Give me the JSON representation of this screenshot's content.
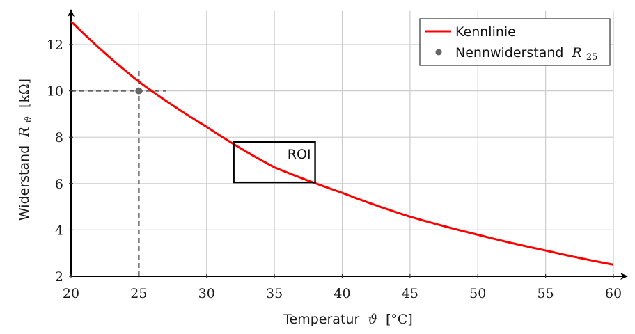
{
  "chart_data": {
    "type": "line",
    "title": "",
    "xlabel": {
      "text": "Temperatur",
      "symbol": "ϑ",
      "unit": "[°C]"
    },
    "ylabel": {
      "text": "Widerstand",
      "symbol": "R",
      "subscript": "ϑ",
      "unit": "[kΩ]"
    },
    "xlim": [
      20,
      62.5
    ],
    "ylim": [
      2,
      13.45
    ],
    "xticks": [
      20,
      25,
      30,
      35,
      40,
      45,
      50,
      55,
      60
    ],
    "yticks": [
      2,
      4,
      6,
      8,
      10,
      12
    ],
    "xtick_labels": [
      "20",
      "25",
      "30",
      "35",
      "40",
      "45",
      "50",
      "55",
      "60"
    ],
    "ytick_labels": [
      "2",
      "4",
      "6",
      "8",
      "10",
      "12"
    ],
    "grid": true,
    "legend_position": "top-right",
    "series": [
      {
        "name": "Kennlinie",
        "kind": "line",
        "color": "#ff0000",
        "x": [
          20,
          25,
          30,
          35,
          40,
          45,
          50,
          55,
          60
        ],
        "y": [
          13.0,
          10.4,
          8.45,
          6.7,
          5.6,
          4.57,
          3.79,
          3.11,
          2.5
        ]
      },
      {
        "name": "Nennwiderstand",
        "name_symbol": "R",
        "name_subscript": "25",
        "kind": "scatter",
        "color": "#666666",
        "x": [
          25
        ],
        "y": [
          10
        ]
      }
    ],
    "annotations": {
      "reference_lines": {
        "color": "#666666",
        "vertical": {
          "x": 25,
          "y_from": 2,
          "y_to": 10.9
        },
        "horizontal": {
          "y": 10,
          "x_from": 20,
          "x_to": 27
        }
      },
      "roi": {
        "label": "ROI",
        "x_from": 32,
        "x_to": 38,
        "y_from": 6.05,
        "y_to": 7.8
      }
    },
    "colors": {
      "axis": "#000000",
      "grid": "#cccccc",
      "curve": "#ff0000",
      "marker": "#666666"
    }
  }
}
